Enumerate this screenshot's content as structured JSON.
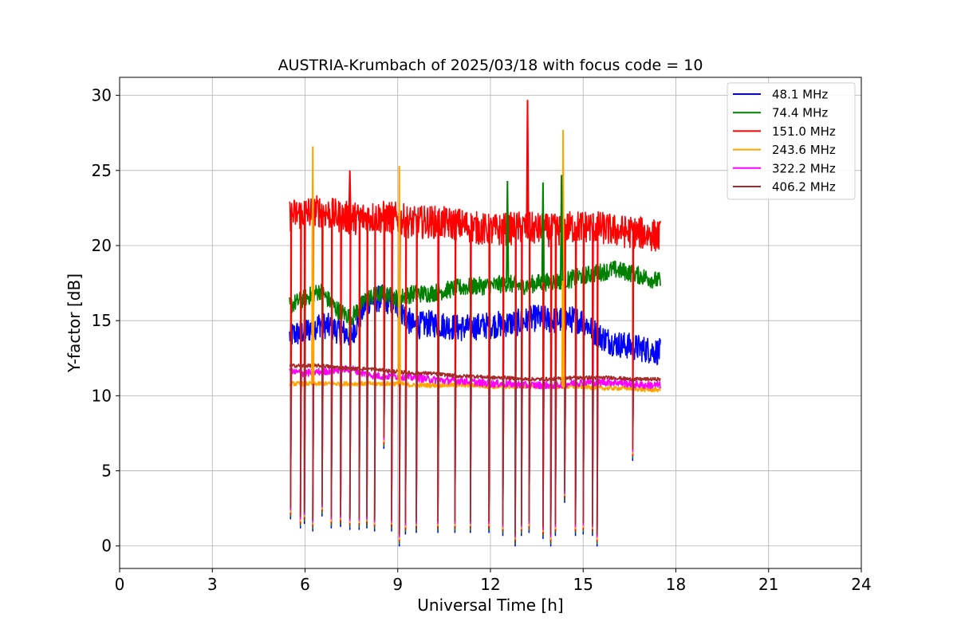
{
  "chart_data": {
    "type": "line",
    "title": "AUSTRIA-Krumbach of 2025/03/18 with focus code = 10",
    "xlabel": "Universal Time [h]",
    "ylabel": "Y-factor [dB]",
    "xlim": [
      0,
      24
    ],
    "ylim": [
      -1.5,
      31.2
    ],
    "xticks": [
      0,
      3,
      6,
      9,
      12,
      15,
      18,
      21,
      24
    ],
    "yticks": [
      0,
      5,
      10,
      15,
      20,
      25,
      30
    ],
    "grid": true,
    "legend_position": "top-right",
    "series": [
      {
        "name": " 48.1 MHz",
        "color": "#0000ff",
        "x": [
          5.5,
          6.0,
          6.5,
          7.0,
          7.5,
          8.0,
          8.5,
          9.0,
          9.5,
          10.0,
          10.5,
          11.0,
          11.5,
          12.0,
          12.5,
          13.0,
          13.5,
          14.0,
          14.5,
          15.0,
          15.5,
          16.0,
          16.5,
          17.0,
          17.5
        ],
        "values": [
          14.0,
          14.3,
          14.8,
          14.4,
          14.0,
          16.3,
          16.5,
          16.0,
          14.6,
          14.8,
          14.7,
          14.5,
          14.6,
          14.7,
          14.8,
          14.9,
          15.2,
          15.0,
          15.1,
          15.0,
          14.0,
          13.5,
          13.3,
          13.1,
          12.9
        ]
      },
      {
        "name": " 74.4 MHz",
        "color": "#008000",
        "x": [
          5.5,
          6.0,
          6.5,
          7.0,
          7.5,
          8.0,
          8.5,
          9.0,
          9.5,
          10.0,
          10.5,
          11.0,
          11.5,
          12.0,
          12.5,
          13.0,
          13.5,
          14.0,
          14.5,
          15.0,
          15.5,
          16.0,
          16.5,
          17.0,
          17.5
        ],
        "values": [
          16.0,
          16.5,
          17.0,
          15.8,
          15.2,
          16.5,
          16.8,
          16.5,
          16.8,
          16.8,
          17.0,
          17.2,
          17.3,
          17.3,
          17.5,
          17.3,
          17.5,
          17.6,
          17.7,
          18.0,
          18.2,
          18.4,
          18.2,
          17.9,
          17.6
        ]
      },
      {
        "name": " 151.0 MHz",
        "color": "#ff0000",
        "x": [
          5.5,
          6.0,
          6.5,
          7.0,
          7.5,
          8.0,
          8.5,
          9.0,
          9.5,
          10.0,
          10.5,
          11.0,
          11.5,
          12.0,
          12.5,
          13.0,
          13.5,
          14.0,
          14.5,
          15.0,
          15.5,
          16.0,
          16.5,
          17.0,
          17.5
        ],
        "values": [
          22.0,
          22.2,
          22.3,
          22.0,
          21.8,
          21.9,
          21.9,
          21.8,
          21.5,
          21.6,
          21.5,
          21.4,
          21.2,
          21.0,
          21.1,
          21.2,
          21.1,
          21.0,
          21.2,
          21.3,
          21.2,
          21.0,
          20.9,
          20.8,
          20.6
        ]
      },
      {
        "name": " 243.6 MHz",
        "color": "#ffa500",
        "x": [
          5.5,
          6.0,
          6.5,
          7.0,
          7.5,
          8.0,
          8.5,
          9.0,
          9.5,
          10.0,
          10.5,
          11.0,
          11.5,
          12.0,
          12.5,
          13.0,
          13.5,
          14.0,
          14.5,
          15.0,
          15.5,
          16.0,
          16.5,
          17.0,
          17.5
        ],
        "values": [
          10.8,
          10.8,
          10.8,
          10.8,
          10.8,
          10.8,
          10.8,
          10.8,
          10.7,
          10.7,
          10.7,
          10.7,
          10.7,
          10.6,
          10.6,
          10.6,
          10.6,
          10.6,
          10.6,
          10.6,
          10.5,
          10.5,
          10.5,
          10.4,
          10.4
        ]
      },
      {
        "name": " 322.2 MHz",
        "color": "#ff00ff",
        "x": [
          5.5,
          6.0,
          6.5,
          7.0,
          7.5,
          8.0,
          8.5,
          9.0,
          9.5,
          10.0,
          10.5,
          11.0,
          11.5,
          12.0,
          12.5,
          13.0,
          13.5,
          14.0,
          14.5,
          15.0,
          15.5,
          16.0,
          16.5,
          17.0,
          17.5
        ],
        "values": [
          11.6,
          11.5,
          11.6,
          11.7,
          11.8,
          11.4,
          11.3,
          11.3,
          11.2,
          11.1,
          11.0,
          11.0,
          10.9,
          10.8,
          10.8,
          10.7,
          10.7,
          10.7,
          10.8,
          10.9,
          10.9,
          10.9,
          10.8,
          10.7,
          10.7
        ]
      },
      {
        "name": " 406.2 MHz",
        "color": "#a52a2a",
        "x": [
          5.5,
          6.0,
          6.5,
          7.0,
          7.5,
          8.0,
          8.5,
          9.0,
          9.5,
          10.0,
          10.5,
          11.0,
          11.5,
          12.0,
          12.5,
          13.0,
          13.5,
          14.0,
          14.5,
          15.0,
          15.5,
          16.0,
          16.5,
          17.0,
          17.5
        ],
        "values": [
          12.0,
          12.0,
          12.0,
          11.9,
          11.8,
          11.8,
          11.7,
          11.6,
          11.5,
          11.5,
          11.4,
          11.3,
          11.3,
          11.2,
          11.2,
          11.1,
          11.1,
          11.1,
          11.2,
          11.2,
          11.2,
          11.2,
          11.1,
          11.1,
          11.1
        ]
      }
    ],
    "dropouts": [
      {
        "t": 5.53,
        "bottom": 1.8
      },
      {
        "t": 5.85,
        "bottom": 1.2
      },
      {
        "t": 5.98,
        "bottom": 1.5
      },
      {
        "t": 6.25,
        "bottom": 1.0
      },
      {
        "t": 6.55,
        "bottom": 2.0
      },
      {
        "t": 6.85,
        "bottom": 1.2
      },
      {
        "t": 7.15,
        "bottom": 1.3
      },
      {
        "t": 7.45,
        "bottom": 1.1
      },
      {
        "t": 7.75,
        "bottom": 1.1
      },
      {
        "t": 8.0,
        "bottom": 1.2
      },
      {
        "t": 8.25,
        "bottom": 1.0
      },
      {
        "t": 8.55,
        "bottom": 6.5
      },
      {
        "t": 8.8,
        "bottom": 1.0
      },
      {
        "t": 9.05,
        "bottom": 0.0
      },
      {
        "t": 9.25,
        "bottom": 0.8
      },
      {
        "t": 9.6,
        "bottom": 0.9
      },
      {
        "t": 10.3,
        "bottom": 0.9
      },
      {
        "t": 10.85,
        "bottom": 0.9
      },
      {
        "t": 11.35,
        "bottom": 0.9
      },
      {
        "t": 11.95,
        "bottom": 0.9
      },
      {
        "t": 12.4,
        "bottom": 0.7
      },
      {
        "t": 12.8,
        "bottom": 0.0
      },
      {
        "t": 13.0,
        "bottom": 0.7
      },
      {
        "t": 13.25,
        "bottom": 0.9
      },
      {
        "t": 13.7,
        "bottom": 0.5
      },
      {
        "t": 13.95,
        "bottom": 0.0
      },
      {
        "t": 14.1,
        "bottom": 0.7
      },
      {
        "t": 14.4,
        "bottom": 2.9
      },
      {
        "t": 14.75,
        "bottom": 0.7
      },
      {
        "t": 15.0,
        "bottom": 0.8
      },
      {
        "t": 15.3,
        "bottom": 0.7
      },
      {
        "t": 15.45,
        "bottom": 0.0
      },
      {
        "t": 16.6,
        "bottom": 5.7
      }
    ],
    "spikes": [
      {
        "t": 6.25,
        "value": 26.6,
        "series": 3
      },
      {
        "t": 9.05,
        "value": 25.3,
        "series": 3
      },
      {
        "t": 13.2,
        "value": 29.7,
        "series": 2
      },
      {
        "t": 14.35,
        "value": 27.7,
        "series": 3
      },
      {
        "t": 7.45,
        "value": 25.0,
        "series": 2
      },
      {
        "t": 12.55,
        "value": 24.3,
        "series": 1
      },
      {
        "t": 13.7,
        "value": 24.2,
        "series": 1
      },
      {
        "t": 14.3,
        "value": 24.7,
        "series": 1
      }
    ]
  }
}
